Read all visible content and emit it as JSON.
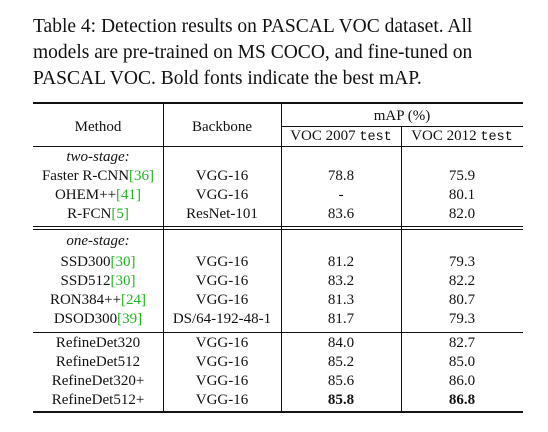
{
  "caption": {
    "line1": "Table 4:  Detection results on PASCAL VOC dataset.  All",
    "line2": "models are pre-trained on MS COCO, and fine-tuned on",
    "line3": "PASCAL VOC. Bold fonts indicate the best mAP."
  },
  "table": {
    "headers": {
      "method": "Method",
      "backbone": "Backbone",
      "map": "mAP (%)",
      "voc2007": "VOC 2007",
      "voc2012": "VOC 2012",
      "test": "test"
    },
    "groups": [
      {
        "label": "two-stage:",
        "rows": [
          {
            "method": "Faster R-CNN",
            "cite": "[36]",
            "backbone": "VGG-16",
            "voc2007": "78.8",
            "voc2012": "75.9"
          },
          {
            "method": "OHEM++",
            "cite": "[41]",
            "backbone": "VGG-16",
            "voc2007": "-",
            "voc2012": "80.1"
          },
          {
            "method": "R-FCN",
            "cite": "[5]",
            "backbone": "ResNet-101",
            "voc2007": "83.6",
            "voc2012": "82.0"
          }
        ]
      },
      {
        "label": "one-stage:",
        "rows": [
          {
            "method": "SSD300",
            "cite": "[30]",
            "backbone": "VGG-16",
            "voc2007": "81.2",
            "voc2012": "79.3"
          },
          {
            "method": "SSD512",
            "cite": "[30]",
            "backbone": "VGG-16",
            "voc2007": "83.2",
            "voc2012": "82.2"
          },
          {
            "method": "RON384++",
            "cite": "[24]",
            "backbone": "VGG-16",
            "voc2007": "81.3",
            "voc2012": "80.7"
          },
          {
            "method": "DSOD300",
            "cite": "[39]",
            "backbone": "DS/64-192-48-1",
            "voc2007": "81.7",
            "voc2012": "79.3"
          }
        ]
      },
      {
        "label": "",
        "rows": [
          {
            "method": "RefineDet320",
            "cite": "",
            "backbone": "VGG-16",
            "voc2007": "84.0",
            "voc2012": "82.7"
          },
          {
            "method": "RefineDet512",
            "cite": "",
            "backbone": "VGG-16",
            "voc2007": "85.2",
            "voc2012": "85.0"
          },
          {
            "method": "RefineDet320+",
            "cite": "",
            "backbone": "VGG-16",
            "voc2007": "85.6",
            "voc2012": "86.0"
          },
          {
            "method": "RefineDet512+",
            "cite": "",
            "backbone": "VGG-16",
            "voc2007": "85.8",
            "voc2012": "86.8",
            "bold": true
          }
        ]
      }
    ]
  }
}
